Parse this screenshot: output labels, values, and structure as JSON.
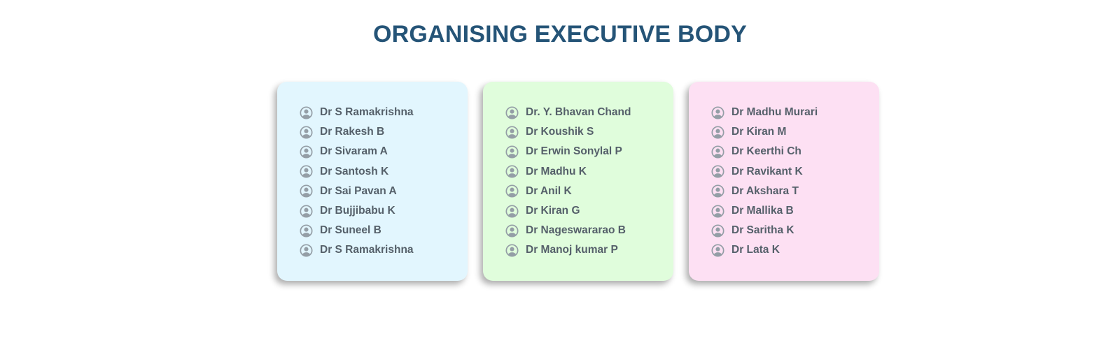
{
  "header": {
    "title": "ORGANISING EXECUTIVE BODY"
  },
  "icon": "user-circle-icon",
  "colors": {
    "title": "#255477",
    "text": "#55606a",
    "icon": "#949ea6",
    "card_blue": "#e2f6fe",
    "card_green": "#e0fddc",
    "card_pink": "#fde0f3"
  },
  "cards": [
    {
      "members": [
        "Dr S Ramakrishna",
        "Dr Rakesh B",
        "Dr Sivaram A",
        "Dr Santosh K",
        "Dr Sai Pavan A",
        "Dr Bujjibabu K",
        "Dr Suneel B",
        "Dr S Ramakrishna"
      ]
    },
    {
      "members": [
        "Dr. Y. Bhavan Chand",
        "Dr Koushik S",
        "Dr Erwin Sonylal P",
        "Dr Madhu K",
        "Dr Anil K",
        "Dr Kiran G",
        "Dr Nageswararao B",
        "Dr Manoj kumar P"
      ]
    },
    {
      "members": [
        "Dr Madhu Murari",
        "Dr Kiran M",
        "Dr Keerthi Ch",
        "Dr Ravikant K",
        "Dr Akshara T",
        "Dr Mallika B",
        "Dr Saritha K",
        "Dr Lata K"
      ]
    }
  ]
}
